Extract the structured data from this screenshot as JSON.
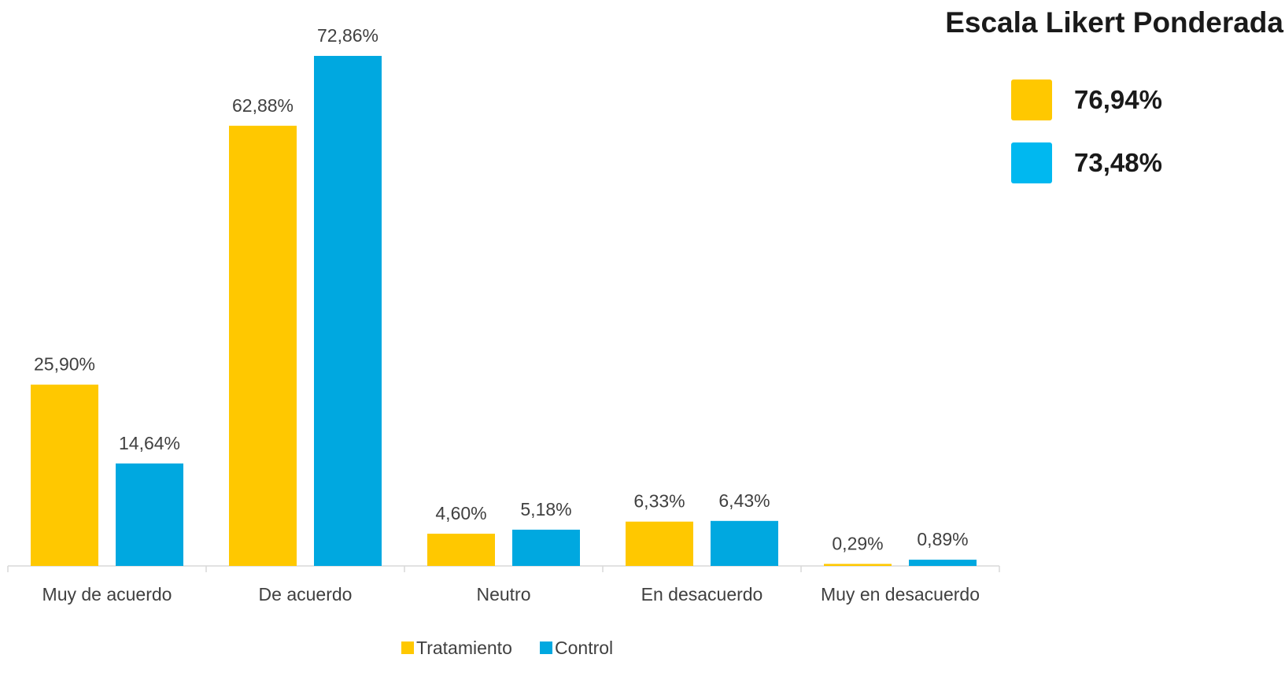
{
  "chart_data": {
    "type": "bar",
    "categories": [
      "Muy de acuerdo",
      "De acuerdo",
      "Neutro",
      "En desacuerdo",
      "Muy en desacuerdo"
    ],
    "series": [
      {
        "name": "Tratamiento",
        "color": "#FFC800",
        "values": [
          25.9,
          62.88,
          4.6,
          6.33,
          0.29
        ],
        "labels": [
          "25,90%",
          "62,88%",
          "4,60%",
          "6,33%",
          "0,29%"
        ]
      },
      {
        "name": "Control",
        "color": "#00A8E0",
        "values": [
          14.64,
          72.86,
          5.18,
          6.43,
          0.89
        ],
        "labels": [
          "14,64%",
          "72,86%",
          "5,18%",
          "6,43%",
          "0,89%"
        ]
      }
    ],
    "ylim": [
      0,
      72.86
    ],
    "grid": false,
    "legend_position": "bottom"
  },
  "summary": {
    "title": "Escala Likert Ponderada",
    "items": [
      {
        "value": "76,94%",
        "color": "#FFC800"
      },
      {
        "value": "73,48%",
        "color": "#00B8F0"
      }
    ]
  }
}
